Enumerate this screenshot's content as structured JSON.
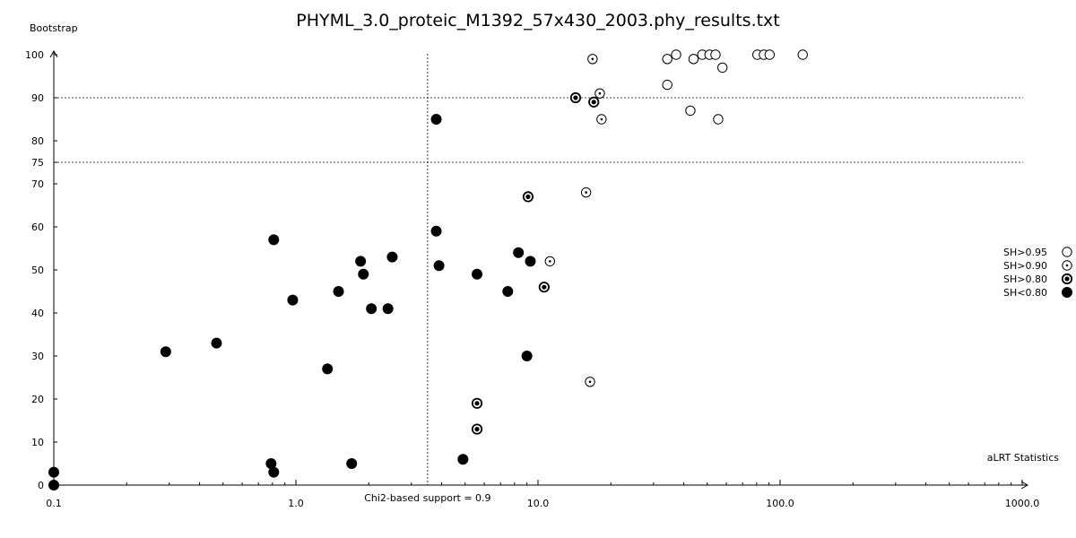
{
  "chart_data": {
    "type": "scatter",
    "title": "PHYML_3.0_proteic_M1392_57x430_2003.phy_results.txt",
    "xlabel": "aLRT Statistics",
    "ylabel": "Bootstrap",
    "x_scale": "log",
    "xlim": [
      0.1,
      1000.0
    ],
    "ylim": [
      0,
      100
    ],
    "x_ticks": [
      "0.1",
      "1.0",
      "10.0",
      "100.0",
      "1000.0"
    ],
    "y_ticks": [
      0,
      10,
      20,
      30,
      40,
      50,
      60,
      70,
      75,
      80,
      90,
      100
    ],
    "reference_lines": {
      "horizontal": [
        75,
        90
      ],
      "vertical": {
        "x": 3.5,
        "label": "Chi2-based support = 0.9"
      }
    },
    "legend": {
      "position": "right"
    },
    "series": [
      {
        "name": "SH>0.95",
        "marker": "open-circle",
        "points": [
          [
            34.2,
            99
          ],
          [
            37.2,
            100
          ],
          [
            43.9,
            99
          ],
          [
            47.7,
            100
          ],
          [
            51.1,
            100
          ],
          [
            54.1,
            100
          ],
          [
            57.8,
            97
          ],
          [
            80.6,
            100
          ],
          [
            85.7,
            100
          ],
          [
            90.5,
            100
          ],
          [
            124.0,
            100
          ],
          [
            34.2,
            93
          ],
          [
            42.6,
            87
          ],
          [
            55.5,
            85
          ]
        ]
      },
      {
        "name": "SH>0.90",
        "marker": "dot-circle",
        "points": [
          [
            16.8,
            99
          ],
          [
            18.0,
            91
          ],
          [
            18.3,
            85
          ],
          [
            15.8,
            68
          ],
          [
            11.2,
            52
          ],
          [
            16.4,
            24
          ]
        ]
      },
      {
        "name": "SH>0.80",
        "marker": "ring-dot",
        "points": [
          [
            14.3,
            90
          ],
          [
            17.0,
            89
          ],
          [
            9.1,
            67
          ],
          [
            10.6,
            46
          ],
          [
            5.6,
            19
          ],
          [
            5.6,
            13
          ]
        ]
      },
      {
        "name": "SH<0.80",
        "marker": "filled-circle",
        "points": [
          [
            3.8,
            85
          ],
          [
            3.8,
            59
          ],
          [
            0.81,
            57
          ],
          [
            3.9,
            51
          ],
          [
            1.85,
            52
          ],
          [
            2.5,
            53
          ],
          [
            1.9,
            49
          ],
          [
            5.6,
            49
          ],
          [
            8.3,
            54
          ],
          [
            9.3,
            52
          ],
          [
            1.5,
            45
          ],
          [
            0.97,
            43
          ],
          [
            2.05,
            41
          ],
          [
            2.4,
            41
          ],
          [
            7.5,
            45
          ],
          [
            0.29,
            31
          ],
          [
            0.47,
            33
          ],
          [
            1.35,
            27
          ],
          [
            9.0,
            30
          ],
          [
            0.79,
            5
          ],
          [
            0.81,
            3
          ],
          [
            1.7,
            5
          ],
          [
            4.9,
            6
          ],
          [
            0.1,
            3
          ],
          [
            0.1,
            0
          ]
        ]
      }
    ]
  }
}
